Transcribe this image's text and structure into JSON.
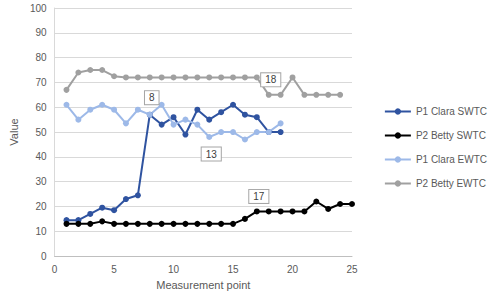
{
  "chart_data": {
    "type": "line",
    "x_label": "Measurement point",
    "y_label": "Value",
    "xlim": [
      0,
      25
    ],
    "xticks": [
      0,
      5,
      10,
      15,
      20,
      25
    ],
    "ylim": [
      0,
      100
    ],
    "yticks": [
      0,
      10,
      20,
      30,
      40,
      50,
      60,
      70,
      80,
      90,
      100
    ],
    "grid": true,
    "legend": "right",
    "marker": "circle",
    "series": [
      {
        "name": "P1 Clara SWTC",
        "color": "#2F53A0",
        "x": [
          1,
          2,
          3,
          4,
          5,
          6,
          7,
          8,
          9,
          10,
          11,
          12,
          13,
          14,
          15,
          16,
          17,
          18,
          19
        ],
        "values": [
          14.5,
          14.5,
          17,
          19.5,
          18.5,
          23,
          24.5,
          57,
          53,
          56,
          49,
          59,
          55,
          58,
          61,
          57,
          56,
          50,
          50
        ]
      },
      {
        "name": "P2 Betty SWTC",
        "color": "#000000",
        "x": [
          1,
          2,
          3,
          4,
          5,
          6,
          7,
          8,
          9,
          10,
          11,
          12,
          13,
          14,
          15,
          16,
          17,
          18,
          19,
          20,
          21,
          22,
          23,
          24,
          25
        ],
        "values": [
          13,
          13,
          13,
          14,
          13,
          13,
          13,
          13,
          13,
          13,
          13,
          13,
          13,
          13,
          13,
          15,
          18,
          18,
          18,
          18,
          18,
          22,
          19,
          21,
          21
        ]
      },
      {
        "name": "P1 Clara EWTC",
        "color": "#9DB9E8",
        "x": [
          1,
          2,
          3,
          4,
          5,
          6,
          7,
          8,
          9,
          10,
          11,
          12,
          13,
          14,
          15,
          16,
          17,
          18,
          19
        ],
        "values": [
          61,
          55,
          59,
          61,
          59,
          53.5,
          59,
          57,
          61,
          53,
          55,
          53,
          48,
          50,
          50,
          47,
          50,
          50,
          53.5
        ]
      },
      {
        "name": "P2 Betty EWTC",
        "color": "#A0A0A0",
        "x": [
          1,
          2,
          3,
          4,
          5,
          6,
          7,
          8,
          9,
          10,
          11,
          12,
          13,
          14,
          15,
          16,
          17,
          18,
          19,
          20,
          21,
          22,
          23,
          24
        ],
        "values": [
          67,
          74,
          75,
          75,
          72.5,
          72,
          72,
          72,
          72,
          72,
          72,
          72,
          72,
          72,
          72,
          72,
          72,
          65,
          65,
          72,
          65,
          65,
          65,
          65
        ]
      }
    ],
    "annotations": [
      {
        "text": "8",
        "x": 8,
        "y": 57,
        "series": "P1 Clara SWTC"
      },
      {
        "text": "13",
        "x": 13,
        "y": 48,
        "series": "P1 Clara EWTC"
      },
      {
        "text": "17",
        "x": 17,
        "y": 18,
        "series": "P2 Betty SWTC"
      },
      {
        "text": "18",
        "x": 18,
        "y": 65,
        "series": "P2 Betty EWTC"
      }
    ]
  }
}
